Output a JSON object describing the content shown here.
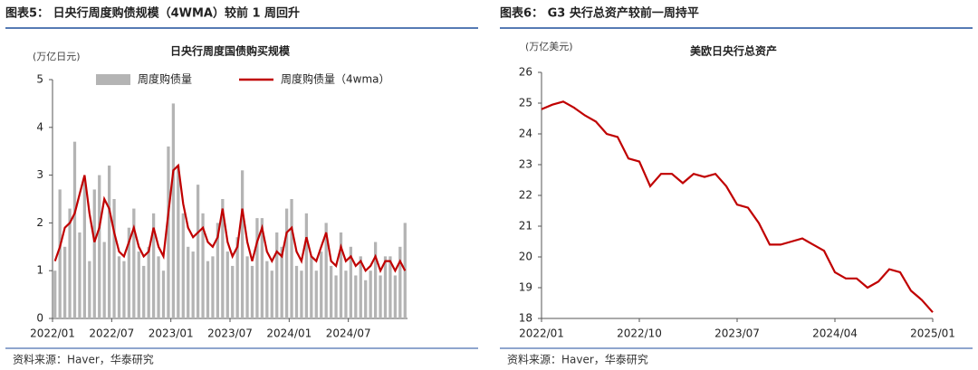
{
  "chart_data": [
    {
      "type": "bar",
      "figure_title": "图表5：  日央行周度购债规模（4WMA）较前 1 周回升",
      "title": "日央行周度国债购买规模",
      "y_unit": "(万亿日元)",
      "source": "资料来源：Haver，华泰研究",
      "categories": [
        "2022/01",
        null,
        null,
        null,
        null,
        null,
        null,
        null,
        null,
        null,
        null,
        null,
        "2022/07",
        null,
        null,
        null,
        null,
        null,
        null,
        null,
        null,
        null,
        null,
        null,
        "2023/01",
        null,
        null,
        null,
        null,
        null,
        null,
        null,
        null,
        null,
        null,
        null,
        "2023/07",
        null,
        null,
        null,
        null,
        null,
        null,
        null,
        null,
        null,
        null,
        null,
        "2024/01",
        null,
        null,
        null,
        null,
        null,
        null,
        null,
        null,
        null,
        null,
        null,
        "2024/07",
        null,
        null,
        null,
        null,
        null,
        null,
        null,
        null,
        null,
        null,
        null
      ],
      "series": [
        {
          "name": "周度购债量",
          "type": "bar",
          "color": "#b4b4b4",
          "values": [
            1.0,
            2.7,
            1.5,
            2.3,
            3.7,
            1.8,
            2.9,
            1.2,
            2.7,
            3.0,
            1.6,
            3.2,
            2.5,
            1.3,
            1.2,
            1.9,
            2.3,
            1.4,
            1.1,
            1.5,
            2.2,
            1.3,
            1.0,
            3.6,
            4.5,
            3.2,
            2.2,
            1.5,
            1.4,
            2.8,
            2.2,
            1.2,
            1.3,
            2.0,
            2.5,
            1.4,
            1.1,
            1.7,
            3.1,
            1.3,
            1.1,
            2.1,
            2.1,
            1.2,
            1.0,
            1.8,
            1.5,
            2.3,
            2.5,
            1.1,
            1.0,
            2.2,
            1.3,
            1.0,
            1.4,
            2.0,
            1.1,
            0.9,
            1.8,
            1.0,
            1.5,
            0.9,
            1.3,
            0.8,
            1.0,
            1.6,
            0.9,
            1.3,
            1.3,
            0.9,
            1.5,
            2.0
          ]
        },
        {
          "name": "周度购债量（4wma）",
          "type": "line",
          "color": "#c00000",
          "values": [
            1.2,
            1.5,
            1.9,
            2.0,
            2.2,
            2.6,
            3.0,
            2.2,
            1.6,
            1.9,
            2.5,
            2.3,
            1.8,
            1.4,
            1.3,
            1.6,
            1.9,
            1.5,
            1.3,
            1.4,
            1.9,
            1.5,
            1.3,
            2.2,
            3.1,
            3.2,
            2.4,
            1.9,
            1.7,
            1.8,
            1.9,
            1.6,
            1.5,
            1.7,
            2.3,
            1.6,
            1.3,
            1.5,
            2.3,
            1.6,
            1.2,
            1.6,
            1.9,
            1.4,
            1.2,
            1.4,
            1.3,
            1.8,
            1.9,
            1.4,
            1.2,
            1.7,
            1.3,
            1.2,
            1.5,
            1.8,
            1.2,
            1.1,
            1.5,
            1.2,
            1.3,
            1.1,
            1.2,
            1.0,
            1.1,
            1.3,
            1.0,
            1.2,
            1.2,
            1.0,
            1.2,
            1.0
          ]
        }
      ],
      "ylim": [
        0,
        5
      ],
      "yticks": [
        0,
        1,
        2,
        3,
        4,
        5
      ]
    },
    {
      "type": "line",
      "figure_title": "图表6：  G3 央行总资产较前一周持平",
      "title": "美欧日央行总资产",
      "y_unit": "(万亿美元)",
      "source": "资料来源：Haver，华泰研究",
      "categories": [
        "2022/01",
        null,
        null,
        null,
        null,
        null,
        null,
        null,
        null,
        "2022/10",
        null,
        null,
        null,
        null,
        null,
        null,
        null,
        null,
        "2023/07",
        null,
        null,
        null,
        null,
        null,
        null,
        null,
        null,
        "2024/04",
        null,
        null,
        null,
        null,
        null,
        null,
        null,
        null,
        "2025/01"
      ],
      "series": [
        {
          "name": null,
          "color": "#c00000",
          "values": [
            24.8,
            24.95,
            25.05,
            24.85,
            24.6,
            24.4,
            24.0,
            23.9,
            23.2,
            23.1,
            22.3,
            22.7,
            22.7,
            22.4,
            22.7,
            22.6,
            22.7,
            22.3,
            21.7,
            21.6,
            21.1,
            20.4,
            20.4,
            20.5,
            20.6,
            20.4,
            20.2,
            19.5,
            19.3,
            19.3,
            19.0,
            19.2,
            19.6,
            19.5,
            18.9,
            18.6,
            18.2
          ]
        }
      ],
      "ylim": [
        18,
        26
      ],
      "yticks": [
        18,
        19,
        20,
        21,
        22,
        23,
        24,
        25,
        26
      ]
    }
  ]
}
